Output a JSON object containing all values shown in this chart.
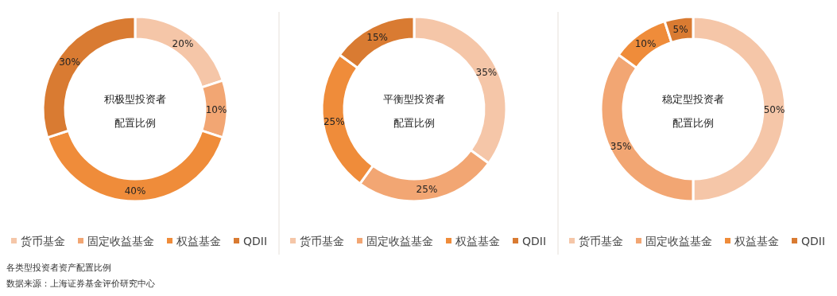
{
  "chart_data": [
    {
      "type": "donut",
      "title": "积极型投资者",
      "subtitle": "配置比例",
      "categories": [
        "货币基金",
        "固定收益基金",
        "权益基金",
        "QDII"
      ],
      "values": [
        20,
        10,
        40,
        30
      ],
      "value_labels": [
        "20%",
        "10%",
        "40%",
        "30%"
      ],
      "colors": [
        "#f5c6a8",
        "#f2a673",
        "#ef8c3a",
        "#d97b32"
      ],
      "legend": "bottom",
      "annotations": [
        "各类型投资者资产配置比例",
        "数据来源：上海证券基金评价研究中心"
      ]
    },
    {
      "type": "donut",
      "title": "平衡型投资者",
      "subtitle": "配置比例",
      "categories": [
        "货币基金",
        "固定收益基金",
        "权益基金",
        "QDII"
      ],
      "values": [
        35,
        25,
        25,
        15
      ],
      "value_labels": [
        "35%",
        "25%",
        "25%",
        "15%"
      ],
      "colors": [
        "#f5c6a8",
        "#f2a673",
        "#ef8c3a",
        "#d97b32"
      ],
      "legend": "bottom"
    },
    {
      "type": "donut",
      "title": "稳定型投资者",
      "subtitle": "配置比例",
      "categories": [
        "货币基金",
        "固定收益基金",
        "权益基金",
        "QDII"
      ],
      "values": [
        50,
        35,
        10,
        5
      ],
      "value_labels": [
        "50%",
        "35%",
        "10%",
        "5%"
      ],
      "colors": [
        "#f5c6a8",
        "#f2a673",
        "#ef8c3a",
        "#d97b32"
      ],
      "legend": "bottom"
    }
  ]
}
